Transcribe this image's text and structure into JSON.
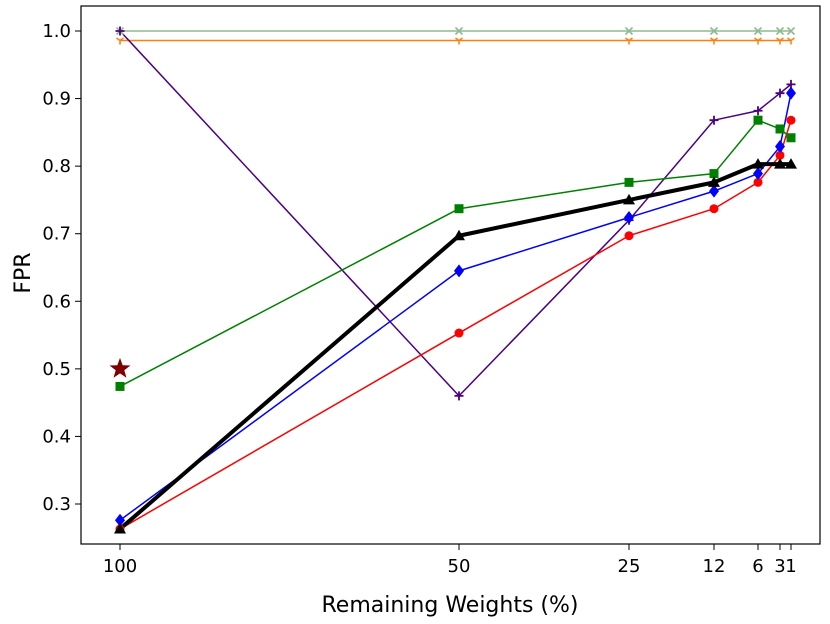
{
  "chart_data": {
    "type": "line",
    "title": "",
    "xlabel": "Remaining Weights (%)",
    "ylabel": "FPR",
    "x": [
      100,
      50,
      25,
      12,
      6,
      3,
      1
    ],
    "x_tick_labels": [
      "100",
      "50",
      "25",
      "12",
      "6",
      "3",
      "1"
    ],
    "ylim": [
      0.25,
      1.04
    ],
    "y_ticks": [
      0.3,
      0.4,
      0.5,
      0.6,
      0.7,
      0.8,
      0.9,
      1.0
    ],
    "y_tick_labels": [
      "0.3",
      "0.4",
      "0.5",
      "0.6",
      "0.7",
      "0.8",
      "0.9",
      "1.0"
    ],
    "grid": false,
    "series": [
      {
        "name": "gray-x",
        "color": "#8fbc8f",
        "marker": "x",
        "values": [
          1.0,
          1.0,
          1.0,
          1.0,
          1.0,
          1.0,
          1.0
        ]
      },
      {
        "name": "orange-tri",
        "color": "#ff7f0e",
        "marker": "tri",
        "values": [
          0.986,
          0.986,
          0.986,
          0.986,
          0.986,
          0.986,
          0.986
        ]
      },
      {
        "name": "purple-plus",
        "color": "#4b0082",
        "marker": "plus",
        "values": [
          1.0,
          0.46,
          0.72,
          0.868,
          0.882,
          0.908,
          0.921
        ]
      },
      {
        "name": "green-square",
        "color": "#008000",
        "marker": "square",
        "values": [
          0.474,
          0.737,
          0.776,
          0.789,
          0.868,
          0.855,
          0.842
        ]
      },
      {
        "name": "red-circle",
        "color": "#ff0000",
        "marker": "circle",
        "values": [
          0.263,
          0.553,
          0.697,
          0.737,
          0.776,
          0.816,
          0.868
        ]
      },
      {
        "name": "blue-diamond",
        "color": "#0000ff",
        "marker": "diamond",
        "values": [
          0.276,
          0.645,
          0.724,
          0.763,
          0.789,
          0.829,
          0.908
        ]
      },
      {
        "name": "black-triangle",
        "color": "#000000",
        "marker": "triangle",
        "values": [
          0.263,
          0.697,
          0.75,
          0.776,
          0.803,
          0.803,
          0.803
        ]
      }
    ],
    "annotations": [
      {
        "name": "star",
        "color": "#800000",
        "marker": "star",
        "x": 100,
        "y": 0.5
      }
    ]
  }
}
